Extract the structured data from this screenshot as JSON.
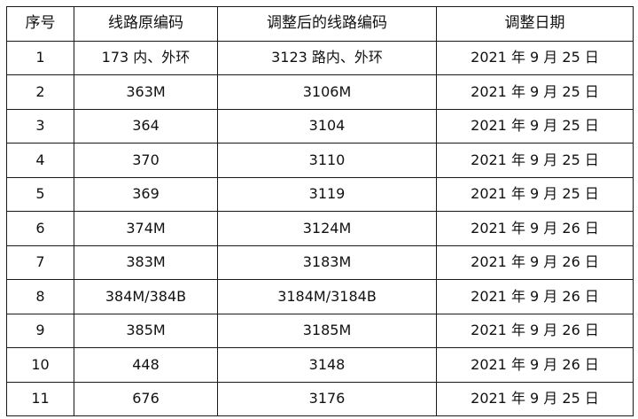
{
  "table": {
    "headers": {
      "index": "序号",
      "old_code": "线路原编码",
      "new_code": "调整后的线路编码",
      "date": "调整日期"
    },
    "rows": [
      {
        "index": "1",
        "old_code": "173 内、外环",
        "new_code": "3123 路内、外环",
        "date": "2021 年 9 月 25 日"
      },
      {
        "index": "2",
        "old_code": "363M",
        "new_code": "3106M",
        "date": "2021 年 9 月 25 日"
      },
      {
        "index": "3",
        "old_code": "364",
        "new_code": "3104",
        "date": "2021 年 9 月 25 日"
      },
      {
        "index": "4",
        "old_code": "370",
        "new_code": "3110",
        "date": "2021 年 9 月 25 日"
      },
      {
        "index": "5",
        "old_code": "369",
        "new_code": "3119",
        "date": "2021 年 9 月 25 日"
      },
      {
        "index": "6",
        "old_code": "374M",
        "new_code": "3124M",
        "date": "2021 年 9 月 26 日"
      },
      {
        "index": "7",
        "old_code": "383M",
        "new_code": "3183M",
        "date": "2021 年 9 月 26 日"
      },
      {
        "index": "8",
        "old_code": "384M/384B",
        "new_code": "3184M/3184B",
        "date": "2021 年 9 月 26 日"
      },
      {
        "index": "9",
        "old_code": "385M",
        "new_code": "3185M",
        "date": "2021 年 9 月 26 日"
      },
      {
        "index": "10",
        "old_code": "448",
        "new_code": "3148",
        "date": "2021 年 9 月 26 日"
      },
      {
        "index": "11",
        "old_code": "676",
        "new_code": "3176",
        "date": "2021 年 9 月 25 日"
      }
    ]
  }
}
